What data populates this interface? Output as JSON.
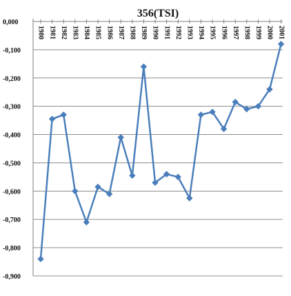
{
  "chart_data": {
    "type": "line",
    "title": "356(TSI)",
    "xlabel": "",
    "ylabel": "",
    "categories": [
      "1980",
      "1981",
      "1982",
      "1983",
      "1984",
      "1985",
      "1986",
      "1987",
      "1988",
      "1989",
      "1990",
      "1991",
      "1992",
      "1993",
      "1994",
      "1995",
      "1996",
      "1997",
      "1998",
      "1999",
      "2000",
      "2001"
    ],
    "y_tick_labels": [
      "0,000",
      "-0,100",
      "-0,200",
      "-0,300",
      "-0,400",
      "-0,500",
      "-0,600",
      "-0,700",
      "-0,800",
      "-0,900"
    ],
    "ylim": [
      -0.9,
      0.0
    ],
    "grid": true,
    "series": [
      {
        "values": [
          -0.84,
          -0.345,
          -0.33,
          -0.6,
          -0.71,
          -0.585,
          -0.61,
          -0.41,
          -0.545,
          -0.16,
          -0.57,
          -0.54,
          -0.55,
          -0.625,
          -0.33,
          -0.32,
          -0.38,
          -0.285,
          -0.31,
          -0.3,
          -0.24,
          -0.08
        ]
      }
    ],
    "colors": {
      "line": "#4a7ebb",
      "gridline": "#8c8c8c",
      "axis": "#7f7f7f",
      "text": "#111111"
    }
  }
}
